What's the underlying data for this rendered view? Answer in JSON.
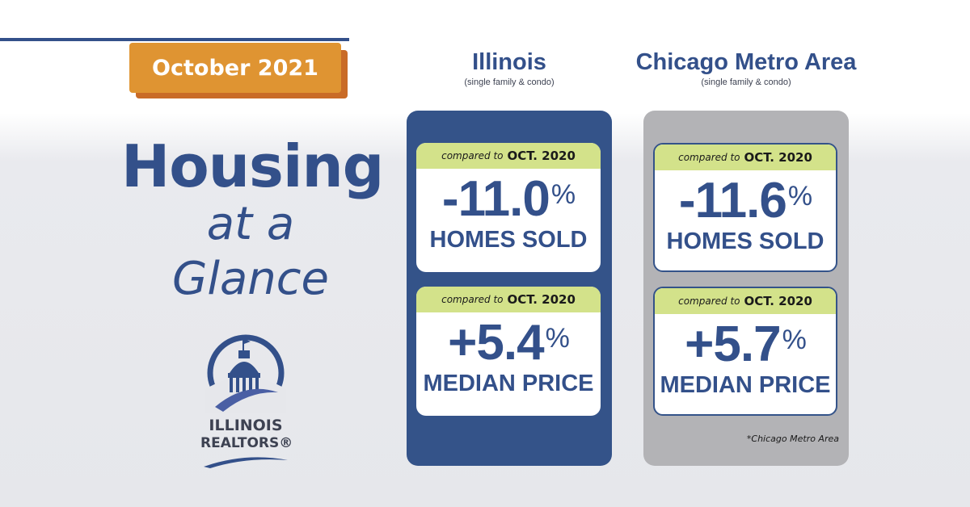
{
  "date_badge": "October 2021",
  "headline": {
    "line1": "Housing",
    "line2": "at a",
    "line3": "Glance"
  },
  "logo": {
    "line1": "ILLINOIS",
    "line2": "REALTORS®"
  },
  "columns": [
    {
      "title": "Illinois",
      "subtitle": "(single family & condo)",
      "cards": [
        {
          "compare_prefix": "compared to",
          "compare_period": "OCT. 2020",
          "value": "-11.0",
          "unit": "%",
          "label": "HOMES SOLD"
        },
        {
          "compare_prefix": "compared to",
          "compare_period": "OCT. 2020",
          "value": "+5.4",
          "unit": "%",
          "label": "MEDIAN PRICE"
        }
      ]
    },
    {
      "title": "Chicago Metro Area",
      "subtitle": "(single family & condo)",
      "cards": [
        {
          "compare_prefix": "compared to",
          "compare_period": "OCT. 2020",
          "value": "-11.6",
          "unit": "%",
          "label": "HOMES SOLD"
        },
        {
          "compare_prefix": "compared to",
          "compare_period": "OCT. 2020",
          "value": "+5.7",
          "unit": "%",
          "label": "MEDIAN PRICE"
        }
      ],
      "footnote": "*Chicago Metro Area"
    }
  ],
  "colors": {
    "navy": "#345389",
    "orange": "#df9432",
    "lime": "#d3e28a",
    "gray_panel": "#b3b3b6"
  }
}
